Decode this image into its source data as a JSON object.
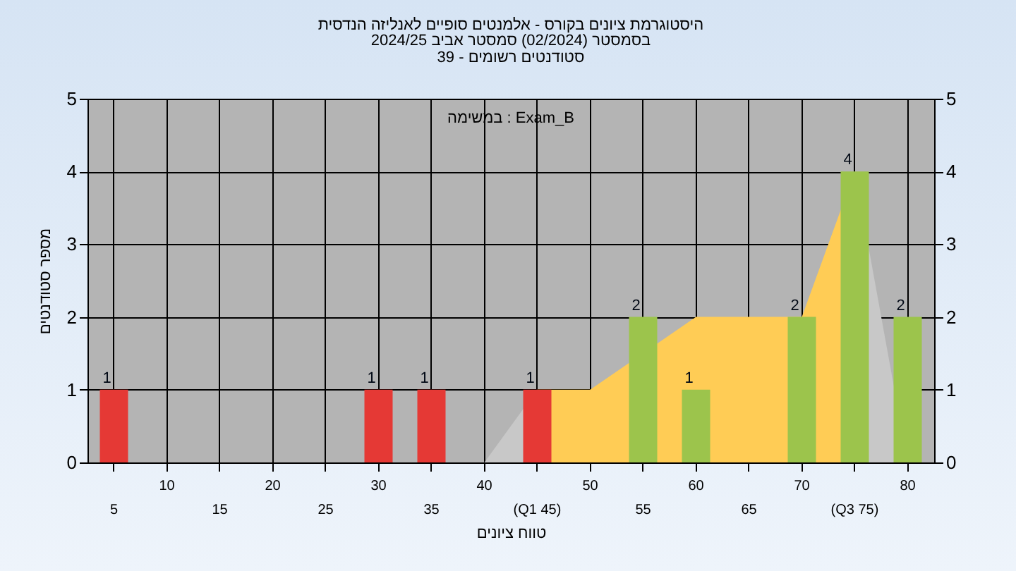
{
  "chart_data": {
    "type": "bar",
    "title": "היסטוגרמת ציונים בקורס - אלמנטים סופיים לאנליזה הנדסית",
    "subtitle": "בסמסטר  (02/2024)  סמסטר אביב 2024/25\nסטודנטים רשומים - 39",
    "xlabel": "טווח ציונים",
    "ylabel": "מספר סטודנטים",
    "annotations": [
      "במשימה : Exam_B"
    ],
    "categories": [
      "5",
      "10",
      "15",
      "20",
      "25",
      "30",
      "35",
      "40",
      "(Q1 45)",
      "50",
      "55",
      "60",
      "65",
      "70",
      "(Q3 75)",
      "80"
    ],
    "series": [
      {
        "type": "area",
        "color": "#c8c8c8",
        "x": [
          "40",
          "(Q1 45)"
        ],
        "values": [
          0,
          1
        ]
      },
      {
        "type": "area",
        "color": "#ffcc55",
        "x": [
          "(Q1 45)",
          "50",
          "60",
          "65",
          "70",
          "(Q3 75)"
        ],
        "values": [
          1,
          1,
          2,
          2,
          2,
          4
        ]
      },
      {
        "type": "area",
        "color": "#c8c8c8",
        "x": [
          "(Q3 75)",
          "80"
        ],
        "values": [
          4,
          0
        ]
      },
      {
        "values": [
          1,
          0,
          0,
          0,
          0,
          1,
          1,
          0,
          1,
          0,
          2,
          1,
          0,
          2,
          4,
          2
        ],
        "colors": [
          "#e53935",
          "#e53935",
          "#e53935",
          "#e53935",
          "#e53935",
          "#e53935",
          "#e53935",
          "#e53935",
          "#e53935",
          "#9cc44c",
          "#9cc44c",
          "#9cc44c",
          "#9cc44c",
          "#9cc44c",
          "#9cc44c",
          "#9cc44c"
        ],
        "value_labels": [
          "1",
          null,
          null,
          null,
          null,
          "1",
          "1",
          null,
          "1",
          null,
          "2",
          "1",
          null,
          "2",
          "4",
          "2"
        ]
      }
    ],
    "ylim": [
      0,
      5
    ],
    "yticks": [
      0,
      1,
      2,
      3,
      4,
      5
    ],
    "y2lim": [
      0,
      5
    ],
    "y2ticks": [
      0,
      1,
      2,
      3,
      4,
      5
    ],
    "grid": true
  }
}
